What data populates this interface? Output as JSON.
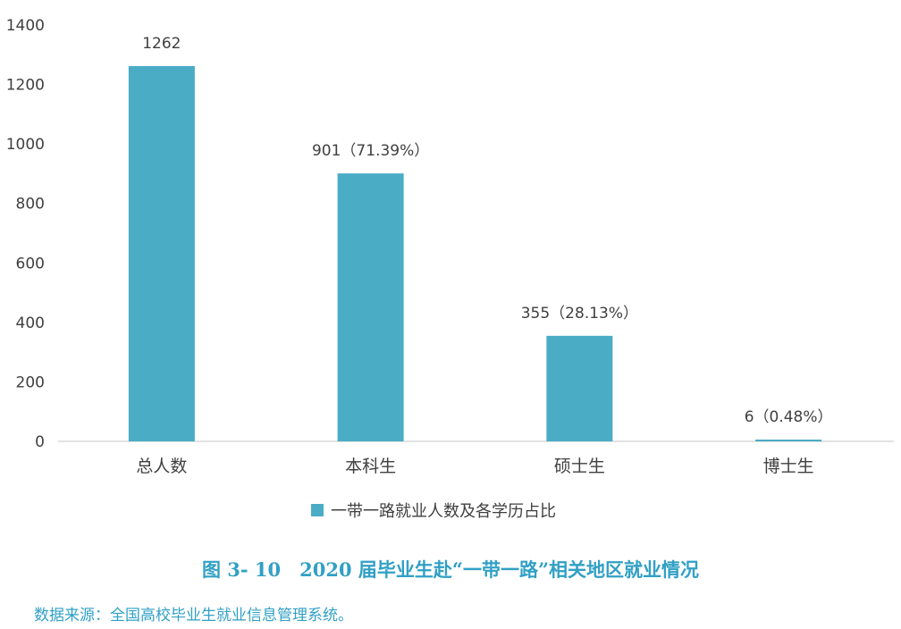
{
  "chart_data": {
    "type": "bar",
    "categories": [
      "总人数",
      "本科生",
      "硕士生",
      "博士生"
    ],
    "series": [
      {
        "name": "一带一路就业人数及各学历占比",
        "values": [
          1262,
          901,
          355,
          6
        ],
        "labels": [
          "1262",
          "901（71.39%）",
          "355（28.13%）",
          "6（0.48%）"
        ]
      }
    ],
    "ylim": [
      0,
      1400
    ],
    "yticks": [
      "0",
      "200",
      "400",
      "600",
      "800",
      "1000",
      "1200",
      "1400"
    ],
    "grid": false,
    "legend_position": "bottom",
    "color": "#4BACC6"
  },
  "caption": "图 3- 10　2020 届毕业生赴“一带一路”相关地区就业情况",
  "source": "数据来源：全国高校毕业生就业信息管理系统。"
}
